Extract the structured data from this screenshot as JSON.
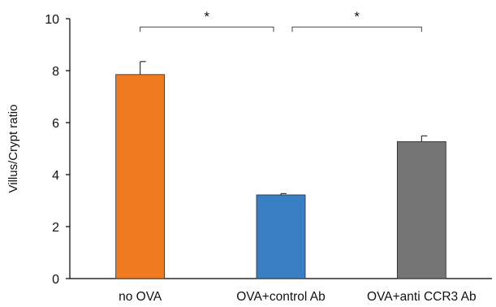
{
  "chart_data": {
    "type": "bar",
    "title": "",
    "xlabel": "",
    "ylabel": "Villus/Crypt ratio",
    "ylim": [
      0,
      10
    ],
    "yticks": [
      0,
      2,
      4,
      6,
      8,
      10
    ],
    "grid": false,
    "legend": "none",
    "categories": [
      "no OVA",
      "OVA+control Ab",
      "OVA+anti CCR3 Ab"
    ],
    "values": [
      7.85,
      3.22,
      5.27
    ],
    "errors": [
      0.5,
      0.05,
      0.22
    ],
    "bar_colors": [
      "#f07a20",
      "#3a7ec4",
      "#757575"
    ],
    "significance": [
      {
        "from": 0,
        "to": 1,
        "label": "*",
        "level": 9.68
      },
      {
        "from": 1,
        "to": 2,
        "label": "*",
        "level": 9.68
      }
    ]
  }
}
